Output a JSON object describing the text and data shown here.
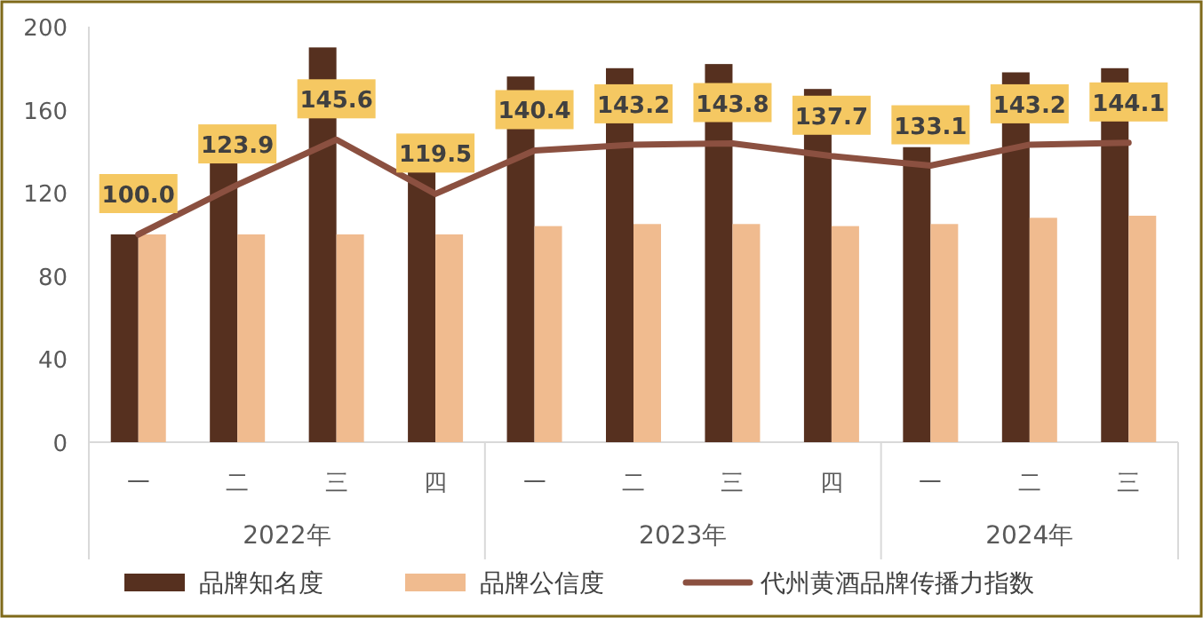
{
  "chart_data": {
    "type": "bar",
    "categories": [
      "一",
      "二",
      "三",
      "四",
      "一",
      "二",
      "三",
      "四",
      "一",
      "二",
      "三"
    ],
    "series": [
      {
        "name": "品牌知名度",
        "color": "#56301f",
        "values": [
          100,
          135,
          190,
          130,
          176,
          180,
          182,
          170,
          142,
          178,
          180
        ]
      },
      {
        "name": "品牌公信度",
        "color": "#f0bb8f",
        "values": [
          100,
          100,
          100,
          100,
          104,
          105,
          105,
          104,
          105,
          108,
          109
        ]
      },
      {
        "name": "代州黄酒品牌传播力指数",
        "type": "line",
        "color": "#8b5040",
        "marker": "none",
        "values": [
          100.0,
          123.9,
          145.6,
          119.5,
          140.4,
          143.2,
          143.8,
          137.7,
          133.1,
          143.2,
          144.1
        ],
        "value_labels": [
          "100.0",
          "123.9",
          "145.6",
          "119.5",
          "140.4",
          "143.2",
          "143.8",
          "137.7",
          "133.1",
          "143.2",
          "144.1"
        ]
      }
    ],
    "annotations": [
      "2022年",
      "2023年",
      "2024年"
    ],
    "ylim": [
      0,
      200
    ],
    "yticks": [
      0,
      40,
      80,
      120,
      160,
      200
    ],
    "grid": false,
    "legend": "bottom"
  }
}
